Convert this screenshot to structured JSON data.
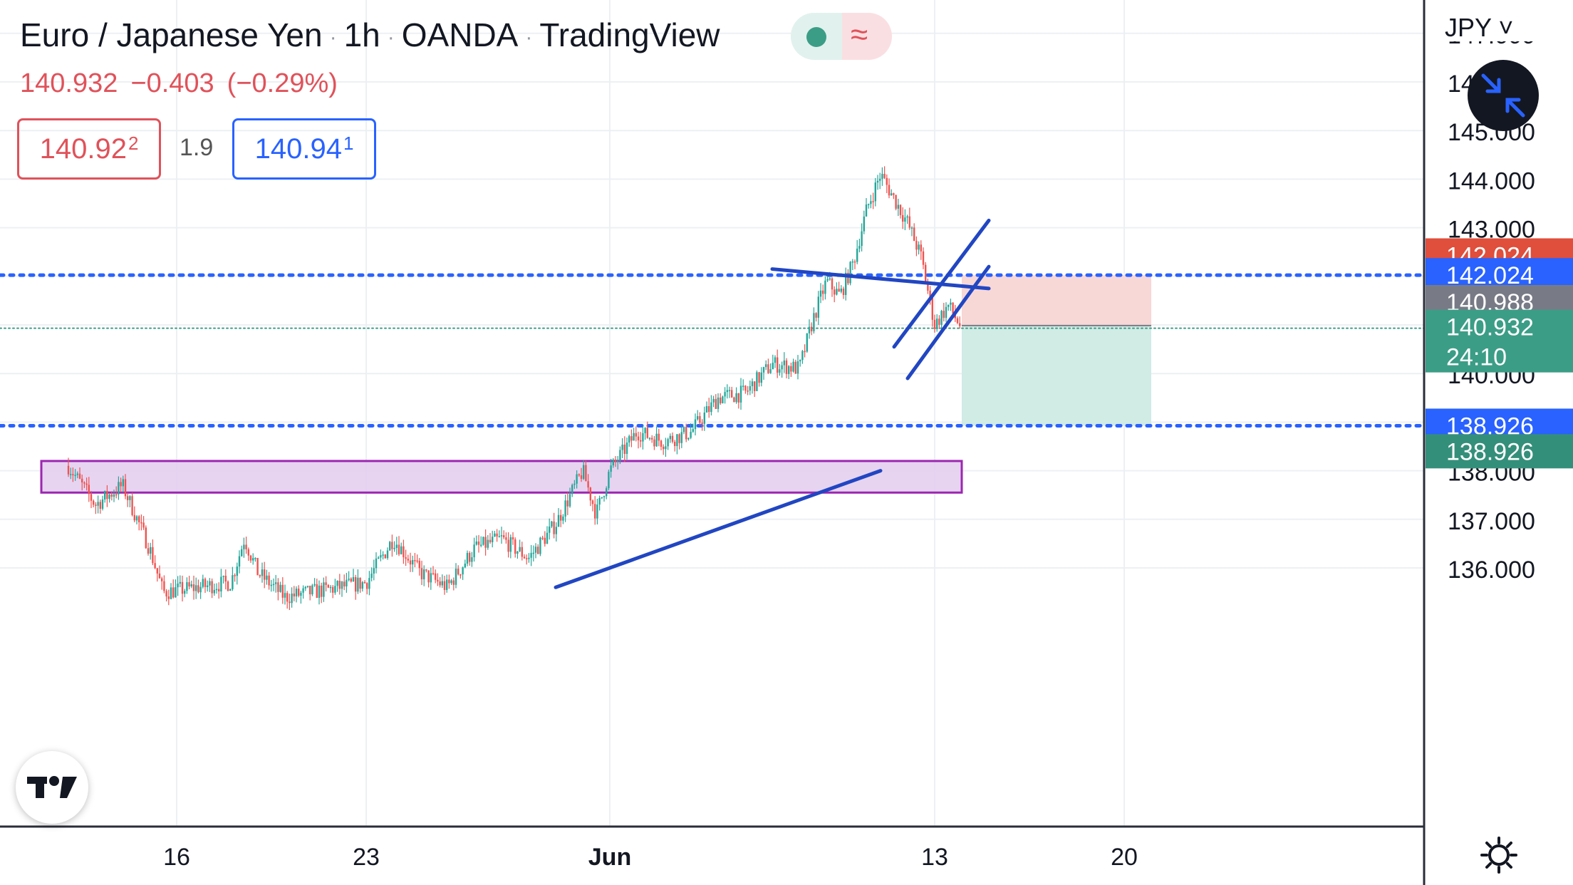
{
  "header": {
    "symbol_name": "Euro / Japanese Yen",
    "interval": "1h",
    "broker": "OANDA",
    "platform": "TradingView",
    "separator": "·"
  },
  "ohlc": {
    "last": "140.932",
    "change": "−0.403",
    "change_pct": "(−0.29%)"
  },
  "quote": {
    "sell_price": "140.92",
    "sell_sup": "2",
    "spread": "1.9",
    "buy_price": "140.94",
    "buy_sup": "1"
  },
  "currency_menu": "JPY ˅",
  "icons": {
    "status_dot": "market-open-dot-icon",
    "status_wave": "wave-icon",
    "fullscreen": "collapse-arrows-icon",
    "logo": "tradingview-logo-icon",
    "settings": "gear-icon"
  },
  "chart_data": {
    "type": "candlestick",
    "x_tick_labels": [
      "16",
      "23",
      "Jun",
      "13",
      "20"
    ],
    "x_tick_dates": [
      "2023-05-16",
      "2023-05-23",
      "2023-06-01",
      "2023-06-13",
      "2023-06-20"
    ],
    "y_ticks": [
      136.0,
      137.0,
      138.0,
      140.0,
      143.0,
      144.0,
      145.0
    ],
    "y_range": [
      135.6,
      147.4
    ],
    "y_tick_labels_partly_hidden": [
      "147.000",
      "146.000"
    ],
    "price_path": [
      {
        "date": "2023-05-12",
        "price": 138.1
      },
      {
        "date": "2023-05-13",
        "price": 137.3
      },
      {
        "date": "2023-05-14",
        "price": 137.7
      },
      {
        "date": "2023-05-15",
        "price": 136.4
      },
      {
        "date": "2023-05-15 12:00",
        "price": 135.5
      },
      {
        "date": "2023-05-18",
        "price": 135.7
      },
      {
        "date": "2023-05-18 12:00",
        "price": 136.6
      },
      {
        "date": "2023-05-19",
        "price": 135.9
      },
      {
        "date": "2023-05-20",
        "price": 135.4
      },
      {
        "date": "2023-05-22",
        "price": 135.6
      },
      {
        "date": "2023-05-23",
        "price": 135.7
      },
      {
        "date": "2023-05-24",
        "price": 136.6
      },
      {
        "date": "2023-05-25",
        "price": 135.9
      },
      {
        "date": "2023-05-26",
        "price": 135.6
      },
      {
        "date": "2023-05-27",
        "price": 136.4
      },
      {
        "date": "2023-05-28",
        "price": 136.6
      },
      {
        "date": "2023-05-29",
        "price": 136.2
      },
      {
        "date": "2023-05-30",
        "price": 136.9
      },
      {
        "date": "2023-05-31",
        "price": 138.0
      },
      {
        "date": "2023-05-31 12:00",
        "price": 137.1
      },
      {
        "date": "2023-06-01",
        "price": 138.0
      },
      {
        "date": "2023-06-02",
        "price": 138.8
      },
      {
        "date": "2023-06-03",
        "price": 138.6
      },
      {
        "date": "2023-06-04",
        "price": 138.8
      },
      {
        "date": "2023-06-05",
        "price": 139.5
      },
      {
        "date": "2023-06-06",
        "price": 139.6
      },
      {
        "date": "2023-06-07",
        "price": 140.2
      },
      {
        "date": "2023-06-08",
        "price": 140.1
      },
      {
        "date": "2023-06-08 12:00",
        "price": 141.1
      },
      {
        "date": "2023-06-09",
        "price": 141.9
      },
      {
        "date": "2023-06-09 12:00",
        "price": 141.6
      },
      {
        "date": "2023-06-10",
        "price": 142.3
      },
      {
        "date": "2023-06-10 12:00",
        "price": 143.4
      },
      {
        "date": "2023-06-11",
        "price": 144.1
      },
      {
        "date": "2023-06-11 12:00",
        "price": 143.6
      },
      {
        "date": "2023-06-12",
        "price": 143.1
      },
      {
        "date": "2023-06-12 12:00",
        "price": 142.4
      },
      {
        "date": "2023-06-13",
        "price": 141.0
      },
      {
        "date": "2023-06-13 12:00",
        "price": 141.4
      },
      {
        "date": "2023-06-14",
        "price": 140.93
      }
    ],
    "horizontal_lines": [
      {
        "price": 142.024,
        "style": "dotted",
        "color": "#2962ff"
      },
      {
        "price": 138.926,
        "style": "dotted",
        "color": "#2962ff"
      },
      {
        "price": 140.932,
        "style": "dotted-thin",
        "color": "#3c9d86"
      }
    ],
    "zones": [
      {
        "name": "demand-zone",
        "from_date": "2023-05-11",
        "to_date": "2023-06-14",
        "top": 138.2,
        "bottom": 137.55,
        "color": "#e3cdef",
        "border": "#9c27b0"
      }
    ],
    "trendlines": [
      {
        "x1": "2023-06-07",
        "y1": 142.15,
        "x2": "2023-06-15",
        "y2": 141.75
      },
      {
        "x1": "2023-06-11 12:00",
        "y1": 140.55,
        "x2": "2023-06-15",
        "y2": 143.15
      },
      {
        "x1": "2023-06-12",
        "y1": 139.9,
        "x2": "2023-06-15",
        "y2": 142.2
      },
      {
        "x1": "2023-05-30",
        "y1": 135.6,
        "x2": "2023-06-11",
        "y2": 138.0
      }
    ],
    "position": {
      "type": "short",
      "from_date": "2023-06-14",
      "to_date": "2023-06-21",
      "entry": 140.988,
      "stop": 142.024,
      "target": 138.926,
      "stop_color": "#f8d7d7",
      "target_color": "#d1ebe5"
    },
    "price_labels": [
      {
        "text": "142.024",
        "price": 142.43,
        "bg": "#e04e3c"
      },
      {
        "text": "142.024",
        "price": 142.024,
        "bg": "#2962ff"
      },
      {
        "text": "140.988",
        "price": 141.47,
        "bg": "#787b86"
      },
      {
        "text": "140.932",
        "price": 140.932,
        "bg": "#3c9d86",
        "countdown": "24:10"
      },
      {
        "text": "138.926",
        "price": 138.926,
        "bg": "#2962ff"
      },
      {
        "text": "138.926",
        "price": 138.4,
        "bg": "#348f7a"
      }
    ]
  }
}
